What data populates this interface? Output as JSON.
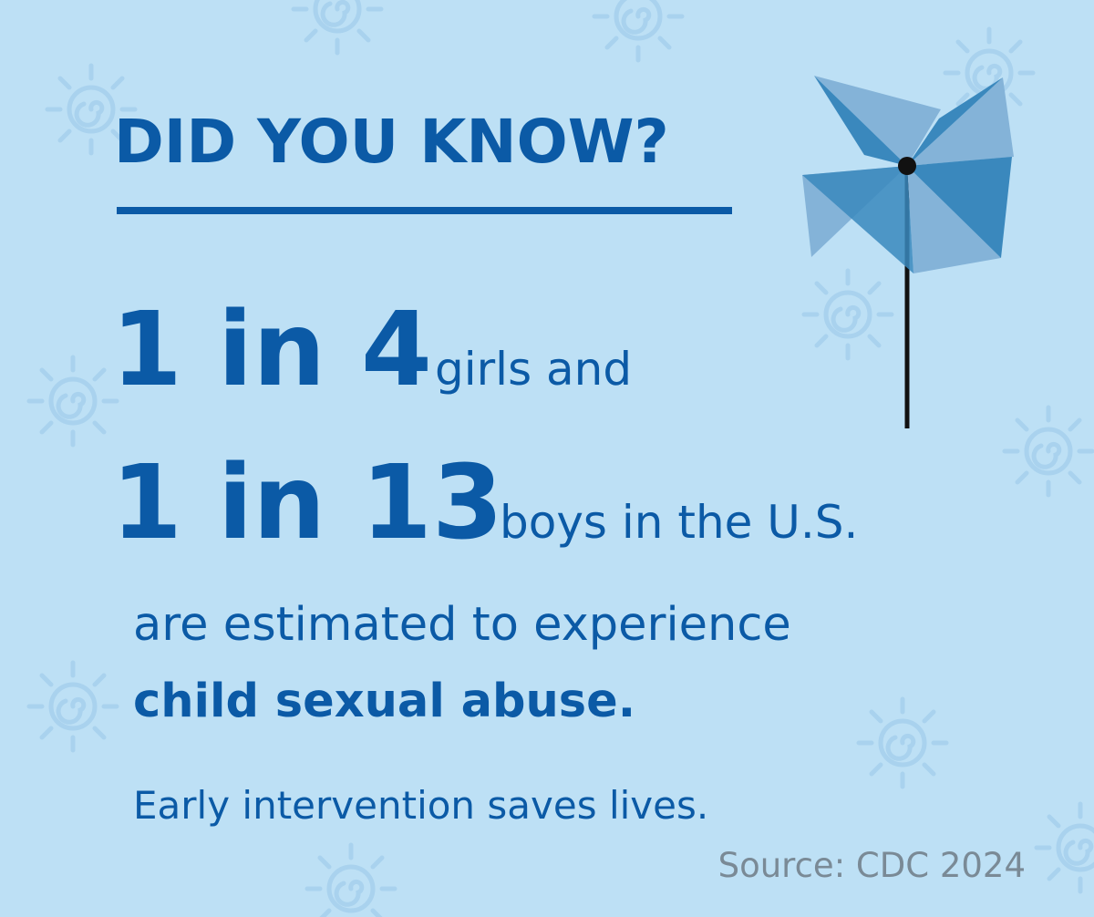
{
  "title": "DID YOU KNOW?",
  "stats": [
    {
      "figure": "1 in 4",
      "text": "girls and"
    },
    {
      "figure": "1 in 13",
      "text": "boys in the U.S."
    }
  ],
  "statement": "are estimated to experience",
  "emphasis": "child sexual abuse.",
  "tagline": "Early intervention saves lives.",
  "source": "Source: CDC 2024"
}
